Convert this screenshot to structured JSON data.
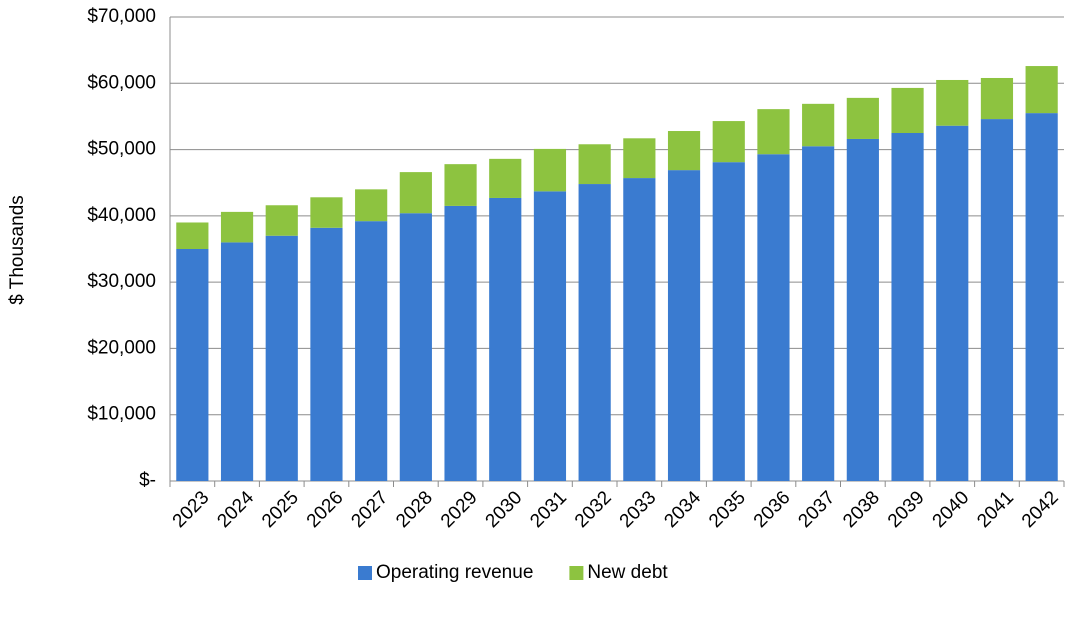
{
  "chart_data": {
    "type": "stacked_bar",
    "y_label": "$ Thousands",
    "categories": [
      "2023",
      "2024",
      "2025",
      "2026",
      "2027",
      "2028",
      "2029",
      "2030",
      "2031",
      "2032",
      "2033",
      "2034",
      "2035",
      "2036",
      "2037",
      "2038",
      "2039",
      "2040",
      "2041",
      "2042"
    ],
    "series": [
      {
        "name": "Operating revenue",
        "color": "#3a7bd0",
        "values": [
          35000,
          36000,
          37000,
          38200,
          39200,
          40400,
          41500,
          42700,
          43700,
          44800,
          45700,
          46900,
          48100,
          49300,
          50500,
          51600,
          52500,
          53600,
          54600,
          55500
        ]
      },
      {
        "name": "New debt",
        "color": "#8dc340",
        "values": [
          4000,
          4600,
          4600,
          4600,
          4800,
          6200,
          6300,
          5900,
          6400,
          6000,
          6000,
          5900,
          6200,
          6800,
          6400,
          6200,
          6800,
          6900,
          6200,
          7100
        ]
      }
    ],
    "ylim": [
      0,
      70000
    ],
    "yticks": [
      {
        "value": 0,
        "label": "$-"
      },
      {
        "value": 10000,
        "label": "$10,000"
      },
      {
        "value": 20000,
        "label": "$20,000"
      },
      {
        "value": 30000,
        "label": "$30,000"
      },
      {
        "value": 40000,
        "label": "$40,000"
      },
      {
        "value": 50000,
        "label": "$50,000"
      },
      {
        "value": 60000,
        "label": "$60,000"
      },
      {
        "value": 70000,
        "label": "$70,000"
      }
    ],
    "grid": true,
    "legend": "bottom"
  }
}
